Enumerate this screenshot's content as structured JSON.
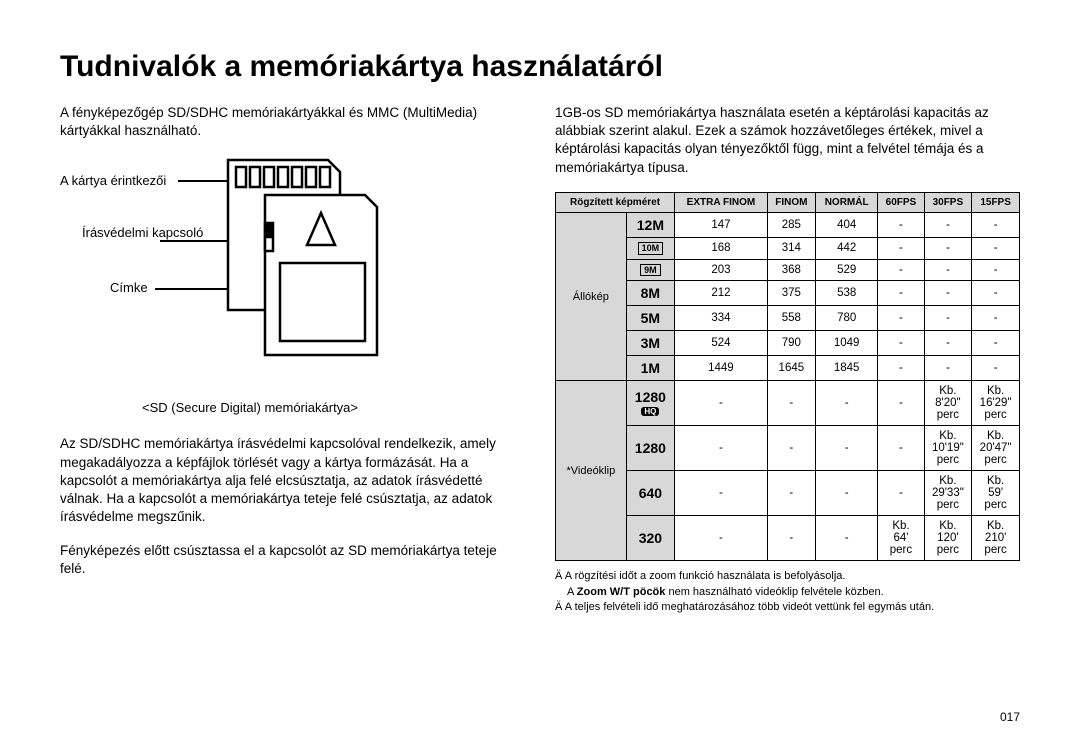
{
  "page": {
    "title": "Tudnivalók a memóriakártya használatáról",
    "number": "017"
  },
  "left": {
    "intro": "A fényképezőgép SD/SDHC memóriakártyákkal és MMC (MultiMedia) kártyákkal használható.",
    "labels": {
      "contacts": "A kártya érintkezői",
      "write_protect": "Írásvédelmi kapcsoló",
      "label": "Címke"
    },
    "caption": "<SD (Secure Digital) memóriakártya>",
    "para2": "Az SD/SDHC memóriakártya írásvédelmi kapcsolóval rendelkezik, amely megakadályozza a képfájlok törlését vagy a kártya formázását. Ha a kapcsolót a memóriakártya alja felé elcsúsztatja, az adatok írásvédetté válnak. Ha a kapcsolót a memóriakártya teteje felé csúsztatja, az adatok írásvédelme megszűnik.",
    "para3": "Fényképezés előtt csúsztassa el a kapcsolót az SD memóriakártya teteje felé."
  },
  "right": {
    "intro": "1GB-os SD memóriakártya használata esetén a képtárolási kapacitás az alábbiak szerint alakul. Ezek a számok hozzávetőleges értékek, mivel a képtárolási kapacitás olyan tényezőktől függ, mint a felvétel témája és a memóriakártya típusa.",
    "headers": {
      "recorded_size": "Rögzített képméret",
      "extra_fine": "EXTRA FINOM",
      "fine": "FINOM",
      "normal": "NORMÁL",
      "fps60": "60FPS",
      "fps30": "30FPS",
      "fps15": "15FPS"
    },
    "row_groups": {
      "still": "Állókép",
      "video": "*Videóklip"
    },
    "still_rows": [
      {
        "size": "12M",
        "ef": "147",
        "f": "285",
        "n": "404"
      },
      {
        "size": "10M",
        "boxed": true,
        "ef": "168",
        "f": "314",
        "n": "442"
      },
      {
        "size": "9M",
        "boxed": true,
        "ef": "203",
        "f": "368",
        "n": "529"
      },
      {
        "size": "8M",
        "ef": "212",
        "f": "375",
        "n": "538"
      },
      {
        "size": "5M",
        "ef": "334",
        "f": "558",
        "n": "780"
      },
      {
        "size": "3M",
        "ef": "524",
        "f": "790",
        "n": "1049"
      },
      {
        "size": "1M",
        "ef": "1449",
        "f": "1645",
        "n": "1845"
      }
    ],
    "video_rows": [
      {
        "size": "1280",
        "hq": true,
        "fps60": "-",
        "fps30": "Kb. 8'20\" perc",
        "fps15": "Kb. 16'29\" perc"
      },
      {
        "size": "1280",
        "fps60": "-",
        "fps30": "Kb. 10'19\" perc",
        "fps15": "Kb. 20'47\" perc"
      },
      {
        "size": "640",
        "fps60": "-",
        "fps30": "Kb. 29'33\" perc",
        "fps15": "Kb. 59' perc"
      },
      {
        "size": "320",
        "fps60": "Kb. 64' perc",
        "fps30": "Kb. 120' perc",
        "fps15": "Kb. 210' perc"
      }
    ],
    "notes": {
      "n1": "A rögzítési időt a zoom funkció használata is befolyásolja.",
      "n2a": "A ",
      "n2b": "Zoom W/T pöcök",
      "n2c": " nem használható videóklip felvétele közben.",
      "n3": "A teljes felvételi idő meghatározásához több videót vettünk fel egymás után."
    }
  },
  "style": {
    "header_bg": "#d8d8d8",
    "border_color": "#000000"
  }
}
